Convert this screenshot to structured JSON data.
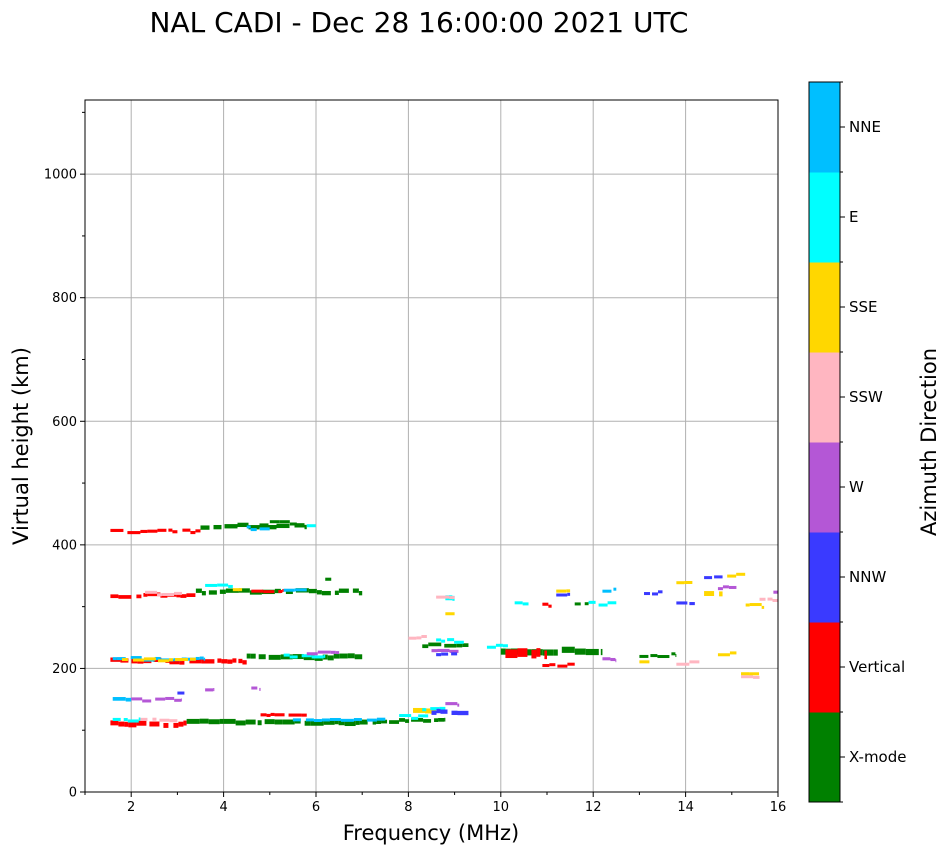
{
  "chart_data": {
    "type": "scatter",
    "title": "NAL CADI - Dec 28 16:00:00 2021 UTC",
    "xlabel": "Frequency (MHz)",
    "ylabel": "Virtual height (km)",
    "xlim": [
      1,
      16
    ],
    "ylim": [
      0,
      1120
    ],
    "xticks": [
      2,
      4,
      6,
      8,
      10,
      12,
      14,
      16
    ],
    "yticks": [
      0,
      200,
      400,
      600,
      800,
      1000
    ],
    "grid": true,
    "colorbar": {
      "label": "Azimuth Direction",
      "categories": [
        "X-mode",
        "Vertical",
        "NNW",
        "W",
        "SSW",
        "SSE",
        "E",
        "NNE"
      ],
      "colors": [
        "#008000",
        "#ff0000",
        "#3a3aff",
        "#b457d6",
        "#ffb6c1",
        "#ffd700",
        "#00ffff",
        "#00bfff"
      ]
    },
    "traces": [
      {
        "cat": "Vertical",
        "f0": 1.55,
        "f1": 3.2,
        "h": 110,
        "dh": 8
      },
      {
        "cat": "X-mode",
        "f0": 3.2,
        "f1": 7.3,
        "h": 113,
        "dh": 8
      },
      {
        "cat": "X-mode",
        "f0": 7.3,
        "f1": 8.8,
        "h": 115,
        "dh": 6
      },
      {
        "cat": "E",
        "f0": 1.6,
        "f1": 2.2,
        "h": 117,
        "dh": 5
      },
      {
        "cat": "SSW",
        "f0": 2.2,
        "f1": 3.0,
        "h": 116,
        "dh": 4
      },
      {
        "cat": "NNE",
        "f0": 5.5,
        "f1": 7.5,
        "h": 118,
        "dh": 4
      },
      {
        "cat": "E",
        "f0": 7.8,
        "f1": 8.5,
        "h": 122,
        "dh": 4
      },
      {
        "cat": "Vertical",
        "f0": 4.8,
        "f1": 5.8,
        "h": 124,
        "dh": 5
      },
      {
        "cat": "SSE",
        "f0": 8.1,
        "f1": 8.6,
        "h": 130,
        "dh": 8
      },
      {
        "cat": "E",
        "f0": 8.3,
        "f1": 8.8,
        "h": 133,
        "dh": 5
      },
      {
        "cat": "NNW",
        "f0": 8.5,
        "f1": 9.3,
        "h": 130,
        "dh": 7
      },
      {
        "cat": "W",
        "f0": 8.8,
        "f1": 9.1,
        "h": 141,
        "dh": 5
      },
      {
        "cat": "NNE",
        "f0": 1.6,
        "f1": 2.0,
        "h": 150,
        "dh": 6
      },
      {
        "cat": "W",
        "f0": 2.0,
        "f1": 3.1,
        "h": 150,
        "dh": 4
      },
      {
        "cat": "NNW",
        "f0": 3.0,
        "f1": 3.2,
        "h": 160,
        "dh": 4
      },
      {
        "cat": "W",
        "f0": 3.6,
        "f1": 3.8,
        "h": 165,
        "dh": 5
      },
      {
        "cat": "W",
        "f0": 4.6,
        "f1": 4.8,
        "h": 168,
        "dh": 4
      },
      {
        "cat": "Vertical",
        "f0": 1.55,
        "f1": 4.5,
        "h": 212,
        "dh": 7
      },
      {
        "cat": "X-mode",
        "f0": 4.5,
        "f1": 7.0,
        "h": 218,
        "dh": 8
      },
      {
        "cat": "NNE",
        "f0": 1.6,
        "f1": 3.6,
        "h": 216,
        "dh": 4
      },
      {
        "cat": "SSE",
        "f0": 1.8,
        "f1": 3.4,
        "h": 214,
        "dh": 3
      },
      {
        "cat": "E",
        "f0": 5.3,
        "f1": 6.2,
        "h": 220,
        "dh": 4
      },
      {
        "cat": "W",
        "f0": 5.8,
        "f1": 6.5,
        "h": 226,
        "dh": 3
      },
      {
        "cat": "X-mode",
        "f0": 8.3,
        "f1": 9.3,
        "h": 238,
        "dh": 6
      },
      {
        "cat": "W",
        "f0": 8.5,
        "f1": 9.1,
        "h": 230,
        "dh": 5
      },
      {
        "cat": "NNW",
        "f0": 8.6,
        "f1": 9.1,
        "h": 222,
        "dh": 5
      },
      {
        "cat": "E",
        "f0": 8.6,
        "f1": 9.2,
        "h": 245,
        "dh": 4
      },
      {
        "cat": "SSW",
        "f0": 8.0,
        "f1": 8.4,
        "h": 250,
        "dh": 4
      },
      {
        "cat": "X-mode",
        "f0": 10.0,
        "f1": 12.2,
        "h": 228,
        "dh": 10
      },
      {
        "cat": "Vertical",
        "f0": 10.1,
        "f1": 11.0,
        "h": 224,
        "dh": 14
      },
      {
        "cat": "E",
        "f0": 9.7,
        "f1": 10.2,
        "h": 236,
        "dh": 4
      },
      {
        "cat": "X-mode",
        "f0": 13.0,
        "f1": 13.8,
        "h": 222,
        "dh": 4
      },
      {
        "cat": "W",
        "f0": 12.2,
        "f1": 12.5,
        "h": 214,
        "dh": 5
      },
      {
        "cat": "SSE",
        "f0": 13.0,
        "f1": 13.3,
        "h": 210,
        "dh": 4
      },
      {
        "cat": "SSW",
        "f0": 13.8,
        "f1": 14.3,
        "h": 210,
        "dh": 3
      },
      {
        "cat": "Vertical",
        "f0": 10.9,
        "f1": 11.6,
        "h": 206,
        "dh": 3
      },
      {
        "cat": "SSE",
        "f0": 14.7,
        "f1": 15.1,
        "h": 224,
        "dh": 4
      },
      {
        "cat": "SSW",
        "f0": 15.2,
        "f1": 15.6,
        "h": 188,
        "dh": 4
      },
      {
        "cat": "SSE",
        "f0": 15.2,
        "f1": 15.6,
        "h": 192,
        "dh": 3
      },
      {
        "cat": "Vertical",
        "f0": 1.55,
        "f1": 3.4,
        "h": 318,
        "dh": 6
      },
      {
        "cat": "X-mode",
        "f0": 3.4,
        "f1": 7.0,
        "h": 324,
        "dh": 7
      },
      {
        "cat": "SSW",
        "f0": 2.3,
        "f1": 3.1,
        "h": 322,
        "dh": 3
      },
      {
        "cat": "E",
        "f0": 3.6,
        "f1": 4.2,
        "h": 333,
        "dh": 4
      },
      {
        "cat": "SSE",
        "f0": 4.2,
        "f1": 4.4,
        "h": 330,
        "dh": 4
      },
      {
        "cat": "Vertical",
        "f0": 4.6,
        "f1": 5.3,
        "h": 327,
        "dh": 4
      },
      {
        "cat": "NNE",
        "f0": 5.3,
        "f1": 5.8,
        "h": 326,
        "dh": 3
      },
      {
        "cat": "X-mode",
        "f0": 6.2,
        "f1": 6.4,
        "h": 342,
        "dh": 5
      },
      {
        "cat": "E",
        "f0": 8.8,
        "f1": 9.0,
        "h": 312,
        "dh": 8
      },
      {
        "cat": "SSE",
        "f0": 8.8,
        "f1": 9.0,
        "h": 290,
        "dh": 4
      },
      {
        "cat": "SSW",
        "f0": 8.6,
        "f1": 9.0,
        "h": 318,
        "dh": 3
      },
      {
        "cat": "E",
        "f0": 10.3,
        "f1": 10.6,
        "h": 307,
        "dh": 4
      },
      {
        "cat": "Vertical",
        "f0": 10.9,
        "f1": 11.1,
        "h": 302,
        "dh": 5
      },
      {
        "cat": "SSE",
        "f0": 11.2,
        "f1": 11.5,
        "h": 327,
        "dh": 5
      },
      {
        "cat": "NNW",
        "f0": 11.2,
        "f1": 11.5,
        "h": 322,
        "dh": 3
      },
      {
        "cat": "X-mode",
        "f0": 11.6,
        "f1": 11.9,
        "h": 305,
        "dh": 4
      },
      {
        "cat": "E",
        "f0": 11.9,
        "f1": 12.5,
        "h": 305,
        "dh": 4
      },
      {
        "cat": "NNE",
        "f0": 12.2,
        "f1": 12.5,
        "h": 327,
        "dh": 4
      },
      {
        "cat": "NNW",
        "f0": 13.1,
        "f1": 13.5,
        "h": 323,
        "dh": 3
      },
      {
        "cat": "SSE",
        "f0": 13.8,
        "f1": 14.2,
        "h": 342,
        "dh": 3
      },
      {
        "cat": "NNW",
        "f0": 13.8,
        "f1": 14.2,
        "h": 306,
        "dh": 5
      },
      {
        "cat": "SSE",
        "f0": 14.4,
        "f1": 14.8,
        "h": 322,
        "dh": 8
      },
      {
        "cat": "W",
        "f0": 14.7,
        "f1": 15.1,
        "h": 331,
        "dh": 4
      },
      {
        "cat": "SSE",
        "f0": 14.9,
        "f1": 15.3,
        "h": 352,
        "dh": 3
      },
      {
        "cat": "NNW",
        "f0": 14.4,
        "f1": 14.8,
        "h": 350,
        "dh": 2
      },
      {
        "cat": "SSE",
        "f0": 15.3,
        "f1": 15.7,
        "h": 302,
        "dh": 3
      },
      {
        "cat": "SSW",
        "f0": 15.6,
        "f1": 16.0,
        "h": 311,
        "dh": 3
      },
      {
        "cat": "W",
        "f0": 15.9,
        "f1": 16.0,
        "h": 325,
        "dh": 5
      },
      {
        "cat": "Vertical",
        "f0": 1.55,
        "f1": 3.5,
        "h": 422,
        "dh": 5
      },
      {
        "cat": "X-mode",
        "f0": 3.5,
        "f1": 5.8,
        "h": 430,
        "dh": 7
      },
      {
        "cat": "NNE",
        "f0": 4.5,
        "f1": 5.0,
        "h": 428,
        "dh": 3
      },
      {
        "cat": "E",
        "f0": 5.8,
        "f1": 6.0,
        "h": 434,
        "dh": 3
      },
      {
        "cat": "X-mode",
        "f0": 5.0,
        "f1": 5.6,
        "h": 436,
        "dh": 4
      }
    ]
  }
}
